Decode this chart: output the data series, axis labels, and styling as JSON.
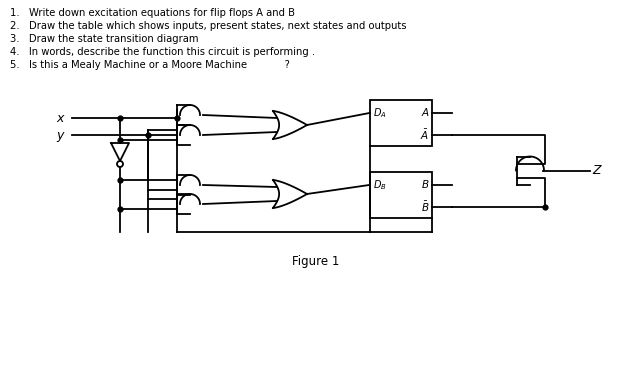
{
  "title_lines": [
    "1.   Write down excitation equations for flip flops A and B",
    "2.   Draw the table which shows inputs, present states, next states and outputs",
    "3.   Draw the state transition diagram",
    "4.   In words, describe the function this circuit is performing .",
    "5.   Is this a Mealy Machine or a Moore Machine            ?"
  ],
  "figure_label": "Figure 1",
  "bg": "#ffffff",
  "lc": "#000000"
}
